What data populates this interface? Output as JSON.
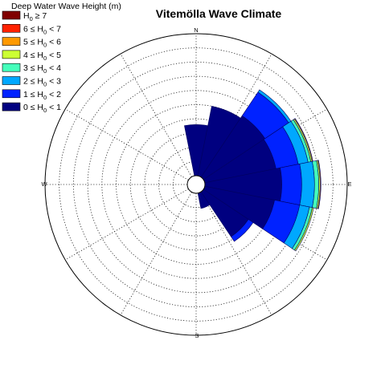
{
  "chart_data": {
    "type": "wind-rose",
    "title": "Vitemölla Wave Climate",
    "legend_title": "Deep Water Wave Height (m)",
    "legend": [
      {
        "label": "H",
        "sub": "0",
        "rest": " ≥ 7",
        "color": "#800000"
      },
      {
        "label": "6 ≤ H",
        "sub": "0",
        "rest": " < 7",
        "color": "#ff2200"
      },
      {
        "label": "5 ≤ H",
        "sub": "0",
        "rest": " < 6",
        "color": "#ff9900"
      },
      {
        "label": "4 ≤ H",
        "sub": "0",
        "rest": " < 5",
        "color": "#ccff33"
      },
      {
        "label": "3 ≤ H",
        "sub": "0",
        "rest": " < 4",
        "color": "#44ffbb"
      },
      {
        "label": "2 ≤ H",
        "sub": "0",
        "rest": " < 3",
        "color": "#00a8ff"
      },
      {
        "label": "1 ≤ H",
        "sub": "0",
        "rest": " < 2",
        "color": "#0022ff"
      },
      {
        "label": "0 ≤ H",
        "sub": "0",
        "rest": " < 1",
        "color": "#000080"
      }
    ],
    "directions": {
      "N": "N",
      "E": "E",
      "S": "S",
      "W": "W"
    },
    "sector_width_deg": 22.5,
    "max_radius": 100,
    "grid_rings": [
      10,
      20,
      30,
      40,
      50,
      60,
      70,
      80,
      90,
      100
    ],
    "grid_spoke_step_deg": 30,
    "sectors": [
      {
        "direction_deg": 0,
        "bins": [
          36
        ]
      },
      {
        "direction_deg": 22.5,
        "bins": [
          50
        ]
      },
      {
        "direction_deg": 45,
        "bins": [
          52,
          20,
          2
        ]
      },
      {
        "direction_deg": 67.5,
        "bins": [
          51,
          16,
          7,
          2,
          1,
          0.5
        ]
      },
      {
        "direction_deg": 90,
        "bins": [
          54,
          14,
          9,
          3,
          1,
          0.5
        ]
      },
      {
        "direction_deg": 112.5,
        "bins": [
          50,
          18,
          7,
          2,
          1
        ]
      },
      {
        "direction_deg": 135,
        "bins": [
          38,
          4
        ]
      },
      {
        "direction_deg": 157.5,
        "bins": [
          11
        ]
      }
    ]
  }
}
